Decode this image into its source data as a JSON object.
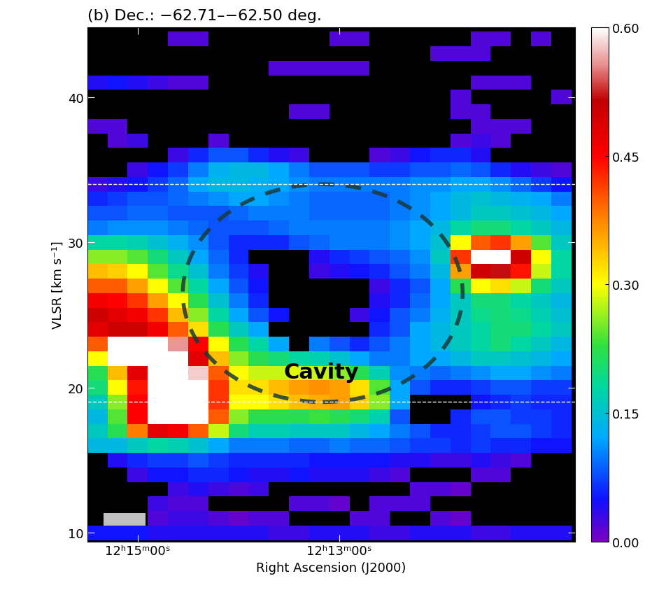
{
  "chart_data": {
    "type": "heatmap",
    "title": "(b) Dec.: −62.71–−62.50 deg.",
    "x_label": "Right Ascension (J2000)",
    "y_label": "VLSR [km s⁻¹]",
    "x": [
      924,
      912,
      900,
      888,
      876,
      864,
      852,
      840,
      828,
      816,
      804,
      792,
      780,
      768,
      756,
      744,
      732,
      720,
      708,
      696,
      684,
      672,
      660,
      648
    ],
    "y": [
      10,
      11,
      12,
      13,
      14,
      15,
      16,
      17,
      18,
      19,
      20,
      21,
      22,
      23,
      24,
      25,
      26,
      27,
      28,
      29,
      30,
      31,
      32,
      33,
      34,
      35,
      36,
      37,
      38,
      39,
      40,
      41,
      42,
      43,
      44
    ],
    "cells": [
      [
        0.05,
        0.05,
        0.05,
        0.04,
        0.04,
        0.04,
        0.04,
        0.04,
        0.04,
        0.03,
        0.03,
        0.04,
        0.04,
        0.04,
        0.03,
        0.03,
        0.04,
        0.04,
        0.04,
        0.03,
        0.03,
        0.04,
        0.04,
        0.04
      ],
      [
        null,
        null,
        null,
        0.02,
        0.03,
        0.03,
        0.02,
        0.01,
        0.02,
        0.02,
        null,
        null,
        null,
        0.02,
        0.02,
        null,
        null,
        0.02,
        0.01,
        null,
        null,
        null,
        null,
        null
      ],
      [
        null,
        null,
        null,
        0.03,
        0.02,
        0.02,
        null,
        null,
        null,
        null,
        0.02,
        0.02,
        0.01,
        null,
        0.02,
        0.02,
        0.02,
        null,
        null,
        null,
        null,
        null,
        null,
        null
      ],
      [
        null,
        null,
        null,
        null,
        0.03,
        0.04,
        0.03,
        0.02,
        0.03,
        null,
        null,
        null,
        null,
        null,
        null,
        null,
        0.02,
        0.02,
        0.01,
        null,
        null,
        null,
        null,
        null
      ],
      [
        null,
        null,
        0.03,
        0.05,
        0.05,
        0.06,
        0.06,
        0.05,
        0.04,
        0.04,
        0.05,
        0.04,
        0.04,
        0.04,
        0.03,
        0.02,
        null,
        null,
        null,
        0.02,
        0.02,
        null,
        null,
        null
      ],
      [
        null,
        0.04,
        0.06,
        0.07,
        0.07,
        0.08,
        0.07,
        0.06,
        0.06,
        0.06,
        0.06,
        0.05,
        0.05,
        0.05,
        0.05,
        0.04,
        0.04,
        0.03,
        0.03,
        0.04,
        0.03,
        0.02,
        null,
        null
      ],
      [
        0.14,
        0.14,
        0.16,
        0.18,
        0.17,
        0.15,
        0.12,
        0.1,
        0.1,
        0.1,
        0.09,
        0.09,
        0.1,
        0.09,
        0.09,
        0.08,
        0.07,
        0.07,
        0.06,
        0.07,
        0.06,
        0.06,
        0.05,
        0.05
      ],
      [
        0.16,
        0.22,
        0.38,
        0.48,
        0.46,
        0.4,
        0.28,
        0.2,
        0.17,
        0.17,
        0.16,
        0.16,
        0.16,
        0.14,
        0.12,
        0.1,
        0.08,
        0.06,
        0.06,
        0.07,
        0.08,
        0.08,
        0.07,
        0.06
      ],
      [
        0.14,
        0.24,
        0.45,
        0.65,
        0.65,
        0.62,
        0.4,
        0.26,
        0.22,
        0.22,
        0.22,
        0.23,
        0.22,
        0.2,
        0.17,
        0.08,
        null,
        null,
        0.06,
        0.08,
        0.08,
        0.07,
        0.07,
        0.06
      ],
      [
        0.16,
        0.26,
        0.45,
        0.66,
        0.68,
        0.64,
        0.42,
        0.3,
        0.3,
        0.32,
        0.34,
        0.35,
        0.36,
        0.33,
        0.26,
        0.12,
        null,
        null,
        null,
        0.05,
        0.06,
        0.07,
        0.06,
        0.06
      ],
      [
        0.2,
        0.3,
        0.44,
        0.66,
        0.66,
        0.62,
        0.42,
        0.32,
        0.32,
        0.34,
        0.36,
        0.37,
        0.36,
        0.32,
        0.24,
        0.12,
        0.08,
        0.06,
        0.06,
        0.07,
        0.08,
        0.08,
        0.07,
        0.07
      ],
      [
        0.22,
        0.34,
        0.48,
        0.65,
        0.66,
        0.58,
        0.4,
        0.3,
        0.28,
        0.28,
        0.29,
        0.28,
        0.26,
        0.22,
        0.17,
        0.11,
        0.1,
        0.09,
        0.1,
        0.11,
        0.12,
        0.12,
        0.11,
        0.1
      ],
      [
        0.3,
        0.62,
        0.66,
        0.65,
        0.6,
        0.48,
        0.34,
        0.26,
        0.22,
        0.2,
        0.18,
        0.17,
        0.15,
        0.12,
        0.1,
        0.1,
        0.12,
        0.12,
        0.14,
        0.16,
        0.16,
        0.15,
        0.14,
        0.12
      ],
      [
        0.4,
        0.64,
        0.66,
        0.62,
        0.56,
        0.45,
        0.3,
        0.22,
        0.18,
        0.12,
        null,
        0.1,
        0.08,
        0.06,
        0.08,
        0.1,
        0.12,
        0.14,
        0.16,
        0.18,
        0.2,
        0.18,
        0.16,
        0.14
      ],
      [
        0.48,
        0.5,
        0.5,
        0.46,
        0.4,
        0.32,
        0.22,
        0.16,
        0.12,
        null,
        null,
        null,
        null,
        null,
        0.06,
        0.08,
        0.12,
        0.14,
        0.16,
        0.18,
        0.2,
        0.2,
        0.18,
        0.16
      ],
      [
        0.5,
        0.48,
        0.46,
        0.42,
        0.34,
        0.26,
        0.18,
        0.12,
        0.08,
        0.05,
        null,
        null,
        null,
        0.03,
        0.05,
        0.08,
        0.1,
        0.13,
        0.16,
        0.19,
        0.2,
        0.19,
        0.17,
        0.15
      ],
      [
        0.46,
        0.45,
        0.42,
        0.36,
        0.3,
        0.22,
        0.15,
        0.1,
        0.06,
        null,
        null,
        null,
        null,
        null,
        0.04,
        0.06,
        0.09,
        0.12,
        0.16,
        0.2,
        0.2,
        0.18,
        0.16,
        0.14
      ],
      [
        0.4,
        0.4,
        0.36,
        0.3,
        0.24,
        0.18,
        0.12,
        0.08,
        0.05,
        null,
        null,
        null,
        null,
        null,
        0.03,
        0.06,
        0.08,
        0.12,
        0.22,
        0.3,
        0.32,
        0.28,
        0.2,
        0.16
      ],
      [
        0.34,
        0.33,
        0.3,
        0.24,
        0.19,
        0.15,
        0.1,
        0.07,
        0.04,
        null,
        null,
        0.03,
        0.04,
        0.05,
        0.06,
        0.08,
        0.1,
        0.14,
        0.36,
        0.5,
        0.52,
        0.44,
        0.28,
        0.18
      ],
      [
        0.26,
        0.26,
        0.24,
        0.2,
        0.16,
        0.12,
        0.09,
        0.06,
        null,
        null,
        null,
        0.04,
        0.06,
        0.07,
        0.08,
        0.09,
        0.11,
        0.16,
        0.42,
        0.66,
        0.68,
        0.5,
        0.3,
        0.18
      ],
      [
        0.18,
        0.18,
        0.17,
        0.15,
        0.13,
        0.11,
        0.08,
        0.06,
        0.06,
        0.06,
        0.08,
        0.09,
        0.1,
        0.1,
        0.1,
        0.11,
        0.12,
        0.15,
        0.3,
        0.4,
        0.42,
        0.36,
        0.24,
        0.16
      ],
      [
        0.1,
        0.11,
        0.11,
        0.11,
        0.1,
        0.09,
        0.08,
        0.08,
        0.08,
        0.09,
        0.1,
        0.1,
        0.1,
        0.1,
        0.1,
        0.11,
        0.12,
        0.14,
        0.18,
        0.2,
        0.2,
        0.18,
        0.16,
        0.14
      ],
      [
        0.08,
        0.08,
        0.09,
        0.09,
        0.08,
        0.08,
        0.08,
        0.09,
        0.1,
        0.1,
        0.1,
        0.09,
        0.09,
        0.09,
        0.09,
        0.1,
        0.11,
        0.12,
        0.14,
        0.16,
        0.16,
        0.15,
        0.14,
        0.12
      ],
      [
        0.06,
        0.07,
        0.08,
        0.08,
        0.09,
        0.1,
        0.11,
        0.12,
        0.12,
        0.11,
        0.1,
        0.09,
        0.09,
        0.09,
        0.09,
        0.1,
        0.11,
        0.12,
        0.14,
        0.15,
        0.14,
        0.13,
        0.12,
        0.1
      ],
      [
        0.03,
        0.04,
        0.05,
        0.07,
        0.09,
        0.12,
        0.14,
        0.14,
        0.13,
        0.12,
        0.11,
        0.1,
        0.1,
        0.1,
        0.1,
        0.1,
        0.11,
        0.11,
        0.12,
        0.12,
        0.11,
        0.09,
        0.07,
        0.05
      ],
      [
        null,
        null,
        0.03,
        0.05,
        0.07,
        0.1,
        0.13,
        0.14,
        0.14,
        0.12,
        0.1,
        0.08,
        0.08,
        0.08,
        0.07,
        0.07,
        0.08,
        0.08,
        0.09,
        0.08,
        0.06,
        0.04,
        0.03,
        0.02
      ],
      [
        null,
        null,
        null,
        null,
        0.03,
        0.06,
        0.08,
        0.08,
        0.06,
        0.04,
        0.03,
        null,
        null,
        null,
        0.02,
        0.03,
        0.05,
        0.06,
        0.06,
        0.04,
        null,
        null,
        null,
        null
      ],
      [
        null,
        0.02,
        0.03,
        null,
        null,
        null,
        0.02,
        null,
        null,
        null,
        null,
        null,
        null,
        null,
        null,
        null,
        null,
        null,
        0.02,
        0.03,
        0.02,
        null,
        null,
        null
      ],
      [
        0.02,
        0.02,
        null,
        null,
        null,
        null,
        null,
        null,
        null,
        null,
        null,
        null,
        null,
        null,
        null,
        null,
        null,
        null,
        null,
        0.02,
        0.02,
        0.02,
        null,
        null
      ],
      [
        null,
        null,
        null,
        null,
        null,
        null,
        null,
        null,
        null,
        null,
        0.02,
        0.02,
        null,
        null,
        null,
        null,
        null,
        null,
        0.02,
        0.02,
        null,
        null,
        null,
        null
      ],
      [
        null,
        null,
        null,
        null,
        null,
        null,
        null,
        null,
        null,
        null,
        null,
        null,
        null,
        null,
        null,
        null,
        null,
        null,
        0.02,
        null,
        null,
        null,
        null,
        0.02
      ],
      [
        0.04,
        0.05,
        0.04,
        0.03,
        0.02,
        0.02,
        null,
        null,
        null,
        null,
        null,
        null,
        null,
        null,
        null,
        null,
        null,
        null,
        null,
        0.02,
        0.02,
        0.02,
        null,
        null
      ],
      [
        null,
        null,
        null,
        null,
        null,
        null,
        null,
        null,
        null,
        0.02,
        0.02,
        0.02,
        0.02,
        0.02,
        null,
        null,
        null,
        null,
        null,
        null,
        null,
        null,
        null,
        null
      ],
      [
        null,
        null,
        null,
        null,
        null,
        null,
        null,
        null,
        null,
        null,
        null,
        null,
        null,
        null,
        null,
        null,
        null,
        0.02,
        0.02,
        0.02,
        null,
        null,
        null,
        null
      ],
      [
        null,
        null,
        null,
        null,
        0.02,
        0.02,
        null,
        null,
        null,
        null,
        null,
        null,
        0.02,
        0.02,
        null,
        null,
        null,
        null,
        null,
        0.02,
        0.02,
        null,
        0.02,
        null
      ]
    ],
    "xlim": [
      930,
      640
    ],
    "ylim": [
      9.4,
      44.8
    ],
    "xticks": [
      {
        "value": 900,
        "label": "12ʰ15ᵐ00ˢ"
      },
      {
        "value": 780,
        "label": "12ʰ13ᵐ00ˢ"
      }
    ],
    "yticks": [
      10,
      20,
      30,
      40
    ],
    "colorbar": {
      "range": [
        0,
        0.6
      ],
      "ticks": [
        {
          "value": 0,
          "label": "0.00"
        },
        {
          "value": 0.15,
          "label": "0.15"
        },
        {
          "value": 0.3,
          "label": "0.30"
        },
        {
          "value": 0.45,
          "label": "0.45"
        },
        {
          "value": 0.6,
          "label": "0.60"
        }
      ]
    },
    "reference_lines": [
      19,
      34
    ],
    "annotations": [
      "Cavity"
    ]
  }
}
